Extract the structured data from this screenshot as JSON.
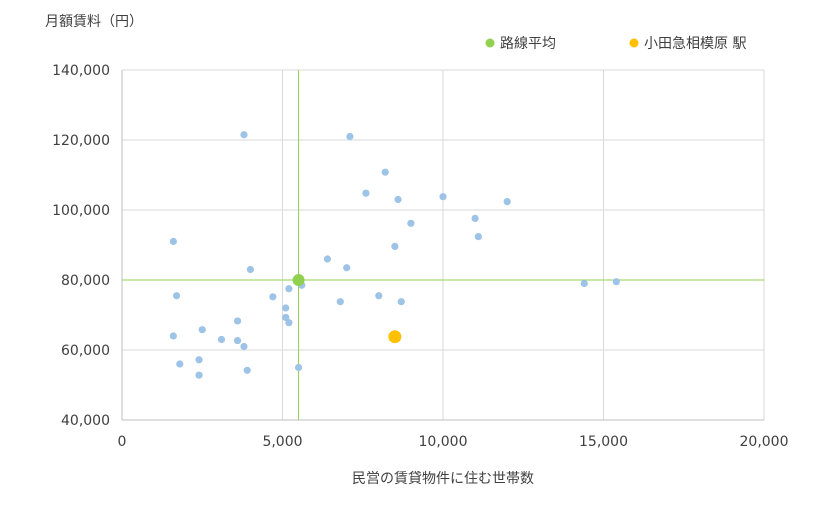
{
  "chart_data": {
    "type": "scatter",
    "title": "",
    "ylabel": "月額賃料（円）",
    "xlabel": "民営の賃貸物件に住む世帯数",
    "xlim": [
      0,
      20000
    ],
    "ylim": [
      40000,
      140000
    ],
    "x_ticks": [
      0,
      5000,
      10000,
      15000,
      20000
    ],
    "x_tick_labels": [
      "0",
      "5,000",
      "10,000",
      "15,000",
      "20,000"
    ],
    "y_ticks": [
      40000,
      60000,
      80000,
      100000,
      120000,
      140000
    ],
    "y_tick_labels": [
      "40,000",
      "60,000",
      "80,000",
      "100,000",
      "120,000",
      "140,000"
    ],
    "grid": true,
    "legend_position": "top-right",
    "legend": [
      {
        "label": "路線平均",
        "color": "#92d050"
      },
      {
        "label": "小田急相模原 駅",
        "color": "#ffc000"
      }
    ],
    "colors": {
      "stations": "#9dc3e6",
      "average": "#92d050",
      "highlight": "#ffc000",
      "reference_lines": "#92d050",
      "grid": "#d9d9d9"
    },
    "reference_lines": {
      "x": 5500,
      "y": 80000
    },
    "series": [
      {
        "name": "",
        "points": [
          [
            1600,
            91000
          ],
          [
            1700,
            75500
          ],
          [
            1600,
            64000
          ],
          [
            1800,
            56000
          ],
          [
            2400,
            57200
          ],
          [
            2400,
            52800
          ],
          [
            2500,
            65800
          ],
          [
            3100,
            63000
          ],
          [
            3600,
            68300
          ],
          [
            3600,
            62700
          ],
          [
            3800,
            61000
          ],
          [
            3800,
            121500
          ],
          [
            3900,
            54200
          ],
          [
            4000,
            83000
          ],
          [
            4700,
            75200
          ],
          [
            5100,
            72000
          ],
          [
            5100,
            69300
          ],
          [
            5200,
            67800
          ],
          [
            5200,
            77500
          ],
          [
            5500,
            55000
          ],
          [
            5600,
            78500
          ],
          [
            6400,
            86000
          ],
          [
            6800,
            73800
          ],
          [
            7000,
            83500
          ],
          [
            7100,
            121000
          ],
          [
            7600,
            104800
          ],
          [
            8000,
            75500
          ],
          [
            8200,
            110800
          ],
          [
            8500,
            89600
          ],
          [
            8600,
            103000
          ],
          [
            8700,
            73800
          ],
          [
            9000,
            96200
          ],
          [
            10000,
            103800
          ],
          [
            11000,
            97600
          ],
          [
            11100,
            92400
          ],
          [
            12000,
            102400
          ],
          [
            14400,
            79000
          ],
          [
            15400,
            79500
          ]
        ]
      },
      {
        "name": "路線平均",
        "points": [
          [
            5500,
            80000
          ]
        ]
      },
      {
        "name": "小田急相模原 駅",
        "points": [
          [
            8500,
            63800
          ]
        ]
      }
    ]
  }
}
